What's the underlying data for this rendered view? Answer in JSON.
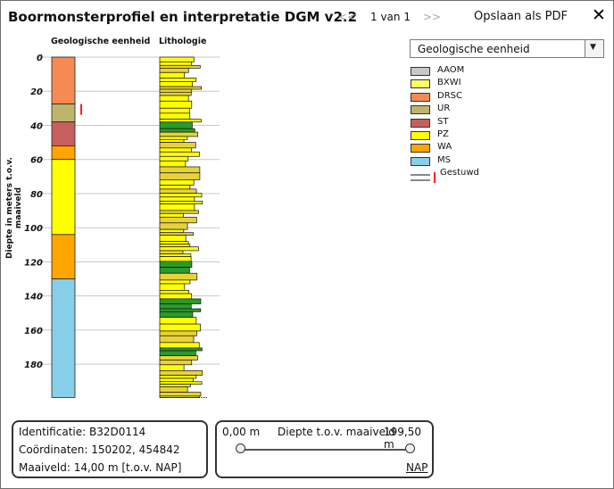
{
  "window": {
    "title": "Boormonsterprofiel en interpretatie DGM v2.2",
    "pager_prev": "<<",
    "pager_label": "1 van 1",
    "pager_next": ">>",
    "save_label": "Opslaan als PDF",
    "close_symbol": "✕",
    "close_icon": "close-icon"
  },
  "profile": {
    "column_geology_label": "Geologische eenheid",
    "column_lithology_label": "Lithologie",
    "yaxis_label": "Diepte in meters t.o.v. maaiveld",
    "ticks": [
      "0",
      "20",
      "40",
      "60",
      "80",
      "100",
      "120",
      "140",
      "160",
      "180"
    ],
    "geology_units": [
      {
        "unit": "DRSC",
        "top": 0,
        "bottom": 27.5
      },
      {
        "unit": "UR",
        "top": 27.5,
        "bottom": 38
      },
      {
        "unit": "ST",
        "top": 38,
        "bottom": 52
      },
      {
        "unit": "WA",
        "top": 52,
        "bottom": 60
      },
      {
        "unit": "PZ",
        "top": 60,
        "bottom": 104
      },
      {
        "unit": "WA",
        "top": 104,
        "bottom": 130
      },
      {
        "unit": "MS",
        "top": 130,
        "bottom": 199.5
      }
    ],
    "gestuwd_interval": {
      "top": 27.5,
      "bottom": 38
    }
  },
  "selector": {
    "value": "Geologische eenheid",
    "arrow": "▼"
  },
  "legend": [
    {
      "label": "AAOM",
      "color": "#c8c8c8"
    },
    {
      "label": "BXWI",
      "color": "#ffff66"
    },
    {
      "label": "DRSC",
      "color": "#f68a52"
    },
    {
      "label": "UR",
      "color": "#bdb46e"
    },
    {
      "label": "ST",
      "color": "#c85f5f"
    },
    {
      "label": "PZ",
      "color": "#ffff00"
    },
    {
      "label": "WA",
      "color": "#ffa500"
    },
    {
      "label": "MS",
      "color": "#87ceeb"
    },
    {
      "label": "Gestuwd",
      "color": "#ff2020"
    }
  ],
  "info": {
    "identificatie": "Identificatie: B32D0114",
    "coordinaten": "Coördinaten: 150202, 454842",
    "maaiveld": "Maaiveld: 14,00 m [t.o.v. NAP]"
  },
  "depth": {
    "min_label": "0,00 m",
    "title": "Diepte t.o.v. maaiveld",
    "max_label": "199,50 m",
    "range": [
      0,
      199.5
    ],
    "nap_label": "NAP"
  }
}
